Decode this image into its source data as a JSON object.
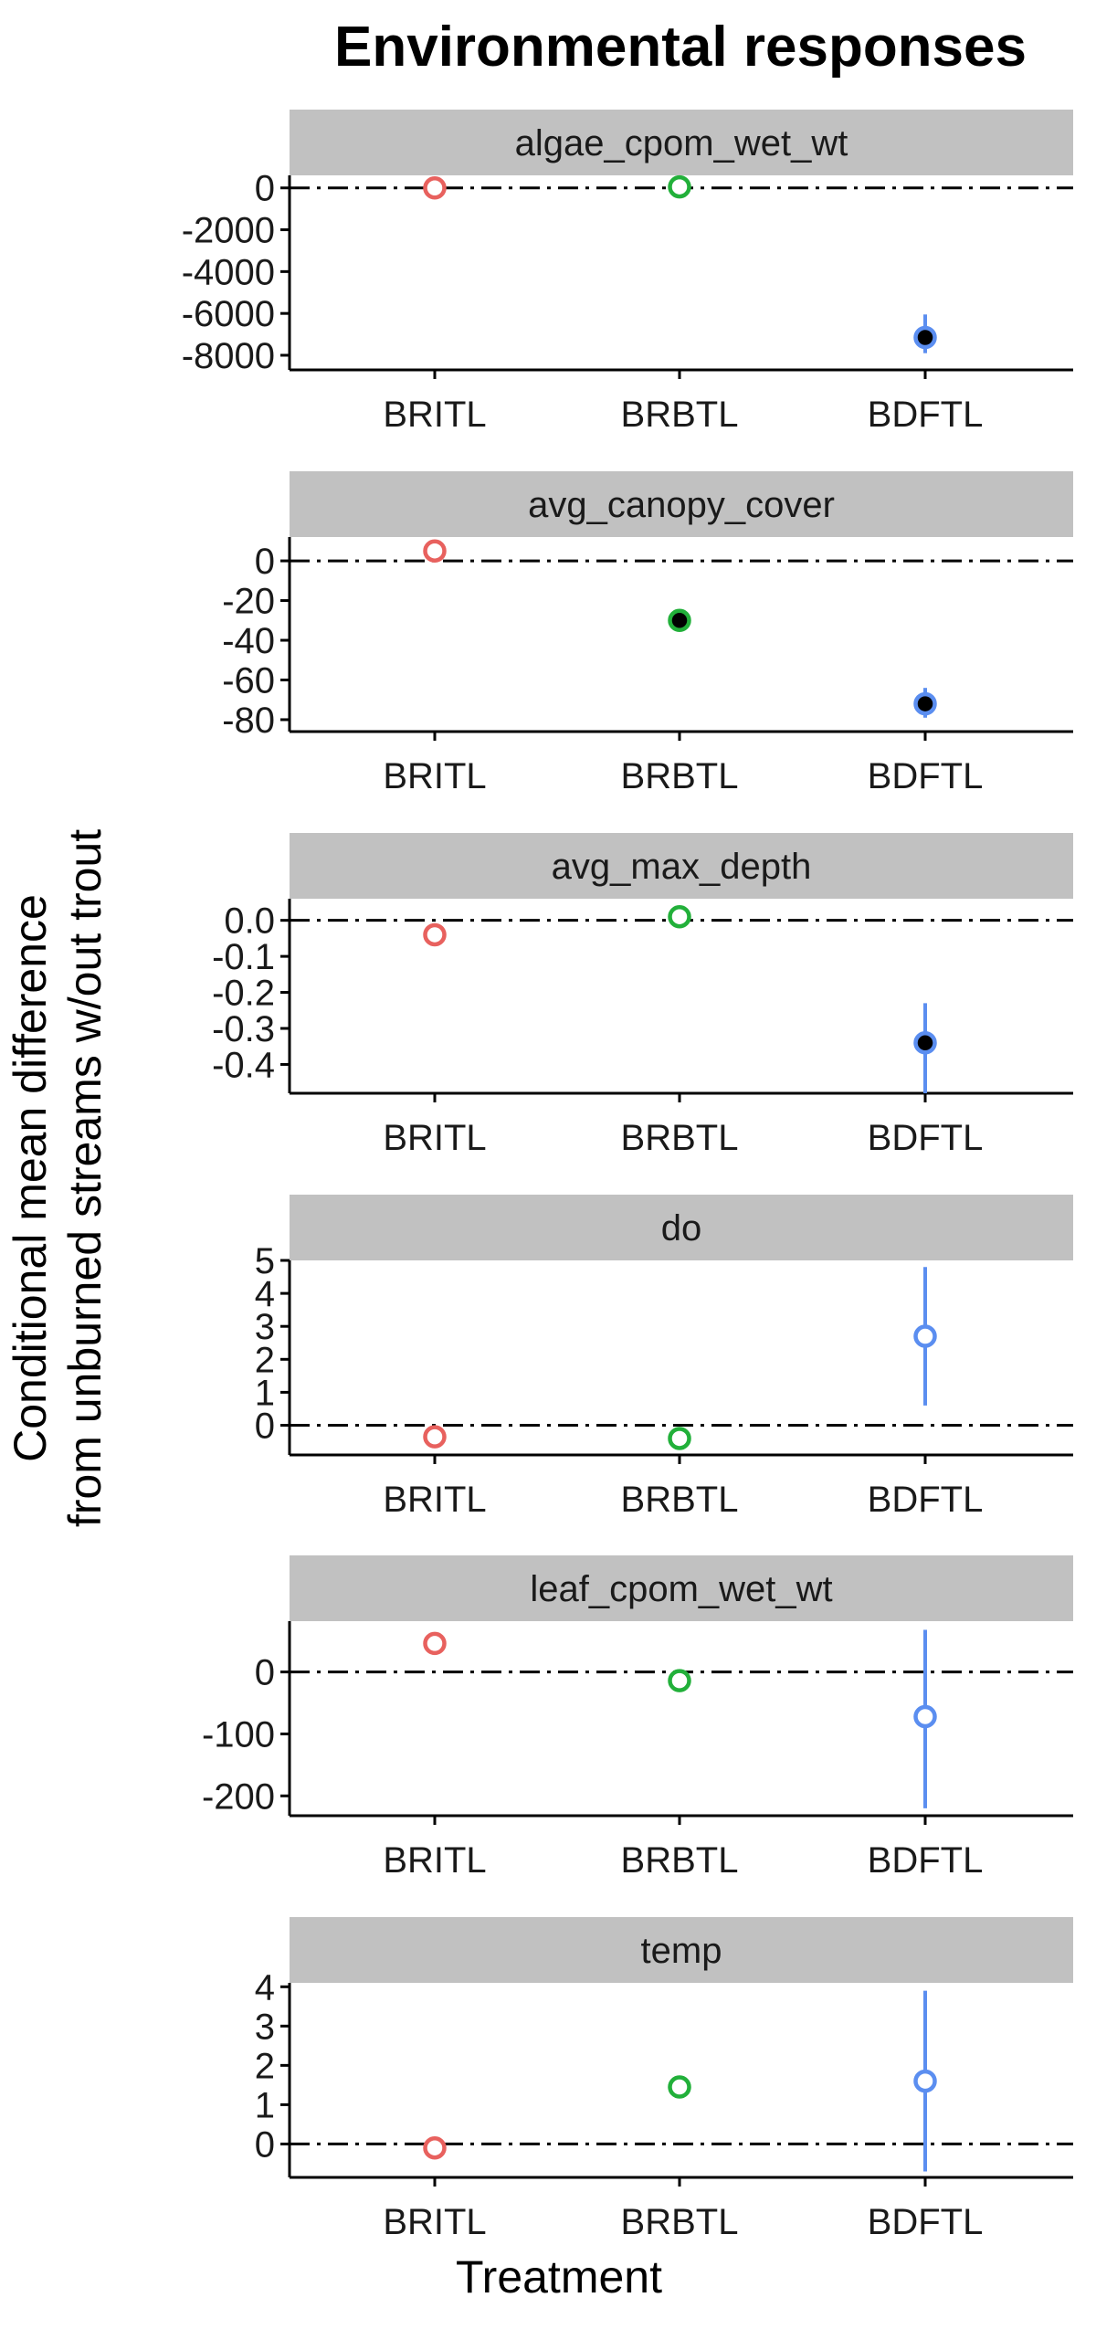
{
  "chart_data": {
    "type": "scatter",
    "title": "Environmental responses",
    "xlabel": "Treatment",
    "ylabel_lines": [
      "Conditional mean difference",
      "from unburned streams w/out trout"
    ],
    "categories": [
      "BRITL",
      "BRBTL",
      "BDFTL"
    ],
    "category_colors": [
      "#e8615e",
      "#22b03a",
      "#5b8ef0"
    ],
    "reference_line": 0,
    "panels": [
      {
        "name": "algae_cpom_wet_wt",
        "ylim": [
          -8700,
          600
        ],
        "yticks": [
          0,
          -2000,
          -4000,
          -6000,
          -8000
        ],
        "ytick_labels": [
          "0",
          "-2000",
          "-4000",
          "-6000",
          "-8000"
        ],
        "points": [
          {
            "category": "BRITL",
            "y": 0,
            "low": null,
            "high": null,
            "significant": false
          },
          {
            "category": "BRBTL",
            "y": 50,
            "low": null,
            "high": null,
            "significant": false
          },
          {
            "category": "BDFTL",
            "y": -7150,
            "low": -7900,
            "high": -6050,
            "significant": true
          }
        ]
      },
      {
        "name": "avg_canopy_cover",
        "ylim": [
          -86,
          12
        ],
        "yticks": [
          0,
          -20,
          -40,
          -60,
          -80
        ],
        "ytick_labels": [
          "0",
          "-20",
          "-40",
          "-60",
          "-80"
        ],
        "points": [
          {
            "category": "BRITL",
            "y": 5,
            "low": null,
            "high": null,
            "significant": false
          },
          {
            "category": "BRBTL",
            "y": -30,
            "low": null,
            "high": null,
            "significant": true
          },
          {
            "category": "BDFTL",
            "y": -72,
            "low": -79,
            "high": -64,
            "significant": true
          }
        ]
      },
      {
        "name": "avg_max_depth",
        "ylim": [
          -0.48,
          0.06
        ],
        "yticks": [
          0.0,
          -0.1,
          -0.2,
          -0.3,
          -0.4
        ],
        "ytick_labels": [
          "0.0",
          "-0.1",
          "-0.2",
          "-0.3",
          "-0.4"
        ],
        "points": [
          {
            "category": "BRITL",
            "y": -0.04,
            "low": null,
            "high": null,
            "significant": false
          },
          {
            "category": "BRBTL",
            "y": 0.01,
            "low": null,
            "high": null,
            "significant": false
          },
          {
            "category": "BDFTL",
            "y": -0.34,
            "low": -0.48,
            "high": -0.23,
            "significant": true
          }
        ]
      },
      {
        "name": "do",
        "ylim": [
          -0.9,
          5.0
        ],
        "yticks": [
          0,
          1,
          2,
          3,
          4,
          5
        ],
        "ytick_labels": [
          "0",
          "1",
          "2",
          "3",
          "4",
          "5"
        ],
        "points": [
          {
            "category": "BRITL",
            "y": -0.35,
            "low": null,
            "high": null,
            "significant": false
          },
          {
            "category": "BRBTL",
            "y": -0.4,
            "low": null,
            "high": null,
            "significant": false
          },
          {
            "category": "BDFTL",
            "y": 2.7,
            "low": 0.6,
            "high": 4.8,
            "significant": false
          }
        ]
      },
      {
        "name": "leaf_cpom_wet_wt",
        "ylim": [
          -232,
          82
        ],
        "yticks": [
          0,
          -100,
          -200
        ],
        "ytick_labels": [
          "0",
          "-100",
          "-200"
        ],
        "points": [
          {
            "category": "BRITL",
            "y": 46,
            "low": null,
            "high": null,
            "significant": false
          },
          {
            "category": "BRBTL",
            "y": -14,
            "low": null,
            "high": null,
            "significant": false
          },
          {
            "category": "BDFTL",
            "y": -72,
            "low": -220,
            "high": 68,
            "significant": false
          }
        ]
      },
      {
        "name": "temp",
        "ylim": [
          -0.85,
          4.1
        ],
        "yticks": [
          0,
          1,
          2,
          3,
          4
        ],
        "ytick_labels": [
          "0",
          "1",
          "2",
          "3",
          "4"
        ],
        "points": [
          {
            "category": "BRITL",
            "y": -0.1,
            "low": null,
            "high": null,
            "significant": false
          },
          {
            "category": "BRBTL",
            "y": 1.45,
            "low": null,
            "high": null,
            "significant": false
          },
          {
            "category": "BDFTL",
            "y": 1.6,
            "low": -0.7,
            "high": 3.9,
            "significant": false
          }
        ]
      }
    ]
  }
}
